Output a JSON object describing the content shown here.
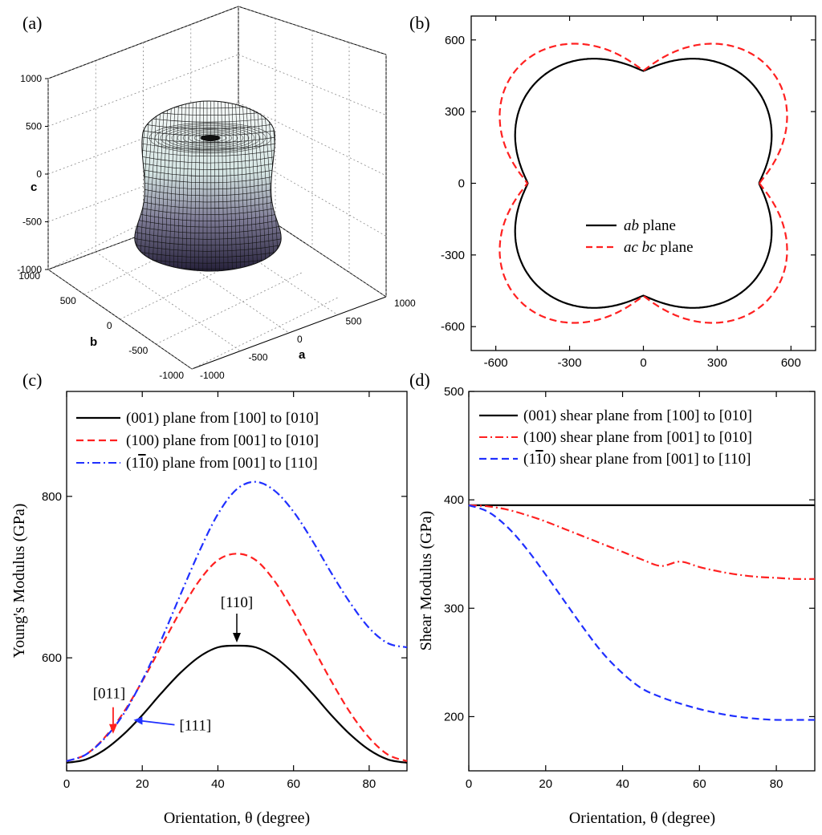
{
  "panels": {
    "a": {
      "label": "(a)"
    },
    "b": {
      "label": "(b)"
    },
    "c": {
      "label": "(c)"
    },
    "d": {
      "label": "(d)"
    }
  },
  "colors": {
    "black": "#000000",
    "red": "#ff2020",
    "blue": "#2030ff",
    "surface_top": "#f4f8f6",
    "surface_bottom": "#2f2a44"
  },
  "chart_data": [
    {
      "id": "a",
      "type": "surface3d",
      "xlabel": "a",
      "ylabel": "b",
      "zlabel": "c",
      "a_ticks": [
        "-1000",
        "-500",
        "0",
        "500",
        "1000"
      ],
      "b_ticks": [
        "-1000",
        "-500",
        "0",
        "500",
        "1000"
      ],
      "c_ticks": [
        "-1000",
        "-500",
        "0",
        "500",
        "1000"
      ],
      "xlim": [
        -1000,
        1000
      ],
      "ylim": [
        -1000,
        1000
      ],
      "zlim": [
        -1000,
        1000
      ],
      "grid": true
    },
    {
      "id": "b",
      "type": "polar-line",
      "xlim": [
        -700,
        700
      ],
      "ylim": [
        -700,
        700
      ],
      "x_ticks": [
        "-600",
        "-300",
        "0",
        "300",
        "600"
      ],
      "y_ticks": [
        "-600",
        "-300",
        "0",
        "300",
        "600"
      ],
      "legend_position": "center",
      "series": [
        {
          "name_italic": "ab",
          "name_rest": " plane",
          "style": "solid",
          "color": "#000000",
          "axis_value": 470,
          "diagonal_value": 615
        },
        {
          "name_italic": "ac bc",
          "name_rest": " plane",
          "style": "dashed",
          "color": "#ff2020",
          "axis_value": 472,
          "diagonal_value": 729
        }
      ]
    },
    {
      "id": "c",
      "type": "line",
      "xlabel": "Orientation, θ (degree)",
      "ylabel": "Young's Modulus (GPa)",
      "xlim": [
        0,
        90
      ],
      "ylim": [
        460,
        930
      ],
      "x_ticks": [
        0,
        20,
        40,
        60,
        80
      ],
      "y_ticks": [
        600,
        800
      ],
      "x": [
        0,
        5,
        10,
        15,
        20,
        25,
        30,
        35,
        40,
        45,
        50,
        55,
        60,
        65,
        70,
        75,
        80,
        85,
        90
      ],
      "legend_position": "top",
      "series": [
        {
          "name": "(001) plane from [100] to [010]",
          "style": "solid",
          "color": "#000000",
          "values": [
            470,
            474,
            486,
            505,
            529,
            556,
            581,
            601,
            613,
            615,
            613,
            601,
            581,
            556,
            529,
            505,
            486,
            474,
            470
          ]
        },
        {
          "name": "(100) plane from [001] to [010]",
          "style": "dashed",
          "color": "#ff2020",
          "values": [
            472,
            480,
            501,
            532,
            571,
            614,
            657,
            695,
            721,
            729,
            721,
            695,
            657,
            614,
            571,
            532,
            501,
            480,
            472
          ]
        },
        {
          "name_pre": "(1",
          "name_bar": "1",
          "name_post": "0) plane from [001] to [110]",
          "style": "dashdot",
          "color": "#2030ff",
          "values": [
            472,
            480,
            500,
            530,
            572,
            622,
            677,
            731,
            778,
            809,
            818,
            807,
            781,
            745,
            705,
            668,
            637,
            618,
            613
          ]
        }
      ],
      "annotations": [
        {
          "text": "[110]",
          "color": "#000000",
          "x": 45,
          "y": 615
        },
        {
          "text": "[011]",
          "color": "#ff2020",
          "x": 12.3,
          "y": 505
        },
        {
          "text": "[111]",
          "color": "#2030ff",
          "x": 17.5,
          "y": 525
        }
      ]
    },
    {
      "id": "d",
      "type": "line",
      "xlabel": "Orientation, θ (degree)",
      "ylabel": "Shear Modulus (GPa)",
      "xlim": [
        0,
        90
      ],
      "ylim": [
        150,
        500
      ],
      "x_ticks": [
        0,
        20,
        40,
        60,
        80
      ],
      "y_ticks": [
        200,
        300,
        400,
        500
      ],
      "x": [
        0,
        5,
        10,
        15,
        20,
        25,
        30,
        35,
        40,
        45,
        50,
        55,
        60,
        65,
        70,
        75,
        80,
        85,
        90
      ],
      "legend_position": "top",
      "series": [
        {
          "name": "(001) shear plane from [100] to [010]",
          "style": "solid",
          "color": "#000000",
          "values": [
            395,
            395,
            395,
            395,
            395,
            395,
            395,
            395,
            395,
            395,
            395,
            395,
            395,
            395,
            395,
            395,
            395,
            395,
            395
          ]
        },
        {
          "name": "(100) shear plane from [001] to [010]",
          "style": "dashdot",
          "color": "#ff2020",
          "values": [
            395,
            394,
            391,
            386,
            380,
            373,
            366,
            359,
            352,
            345,
            339,
            343,
            338,
            334,
            331,
            329,
            328,
            327,
            327
          ]
        },
        {
          "name_pre": "(1",
          "name_bar": "1",
          "name_post": "0) shear plane from [001] to [110]",
          "style": "dashed",
          "color": "#2030ff",
          "values": [
            395,
            389,
            375,
            355,
            331,
            306,
            281,
            258,
            240,
            226,
            218,
            212,
            207,
            203,
            200,
            198,
            197,
            197,
            197
          ]
        }
      ]
    }
  ]
}
